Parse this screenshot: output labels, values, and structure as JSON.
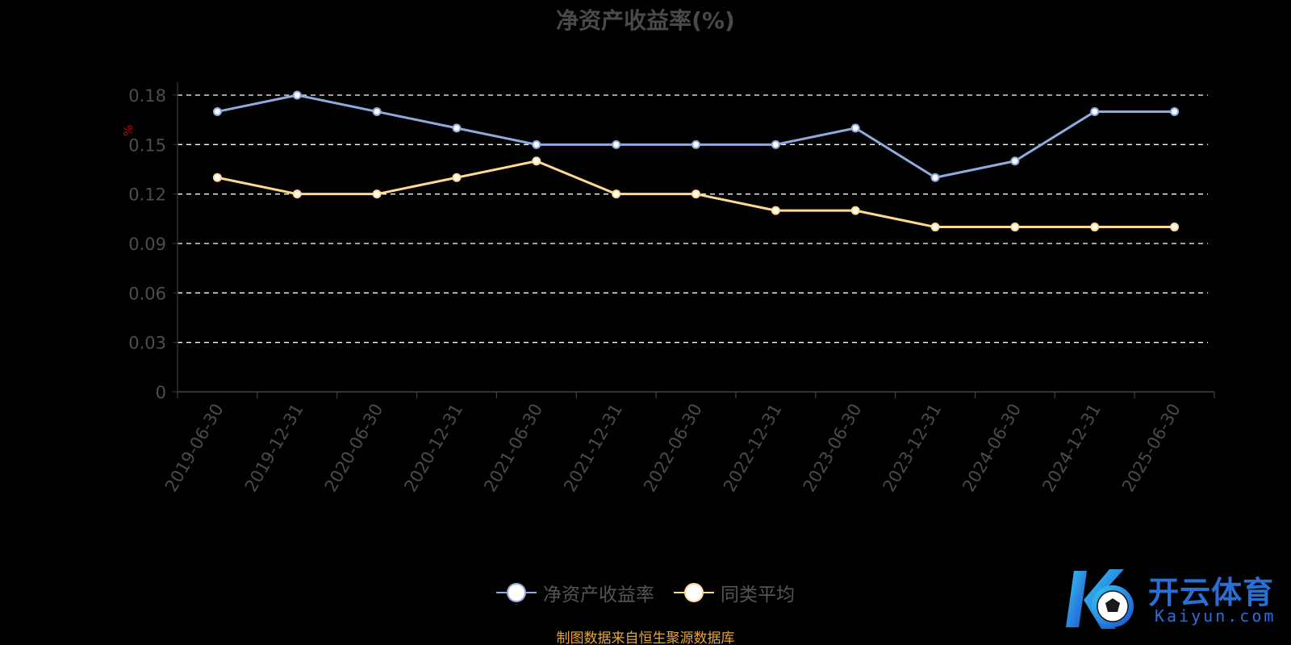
{
  "title": "净资产收益率(%)",
  "source_note": "制图数据来自恒生聚源数据库",
  "watermark": {
    "brand": "开云体育",
    "url": "Kaiyun.com"
  },
  "colors": {
    "series_roe": "#8faadc",
    "series_avg": "#ffd98e",
    "unit_label": "#cc0000",
    "source_note": "#e8a33d",
    "grid": "#ffffff"
  },
  "chart_data": {
    "type": "line",
    "title": "净资产收益率(%)",
    "y_unit_label": "%",
    "x": [
      "2019-06-30",
      "2019-12-31",
      "2020-06-30",
      "2020-12-31",
      "2021-06-30",
      "2021-12-31",
      "2022-06-30",
      "2022-12-31",
      "2023-06-30",
      "2023-12-31",
      "2024-06-30",
      "2024-12-31",
      "2025-06-30"
    ],
    "ylim": [
      0,
      0.18
    ],
    "y_ticks": [
      "0",
      "0.03",
      "0.06",
      "0.09",
      "0.12",
      "0.15",
      "0.18"
    ],
    "grid": true,
    "legend_position": "bottom",
    "series": [
      {
        "name": "净资产收益率",
        "values": [
          0.17,
          0.18,
          0.17,
          0.16,
          0.15,
          0.15,
          0.15,
          0.15,
          0.16,
          0.13,
          0.14,
          0.17,
          0.17
        ]
      },
      {
        "name": "同类平均",
        "values": [
          0.13,
          0.12,
          0.12,
          0.13,
          0.14,
          0.12,
          0.12,
          0.11,
          0.11,
          0.1,
          0.1,
          0.1,
          0.1
        ]
      }
    ]
  }
}
